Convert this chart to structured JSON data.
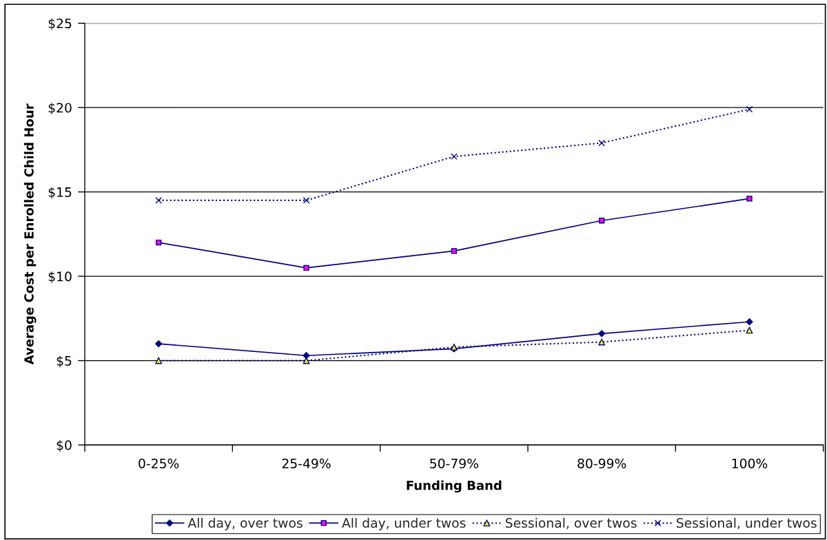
{
  "chart_data": {
    "type": "line",
    "xlabel": "Funding Band",
    "ylabel": "Average Cost per Enrolled Child Hour",
    "categories": [
      "0-25%",
      "25-49%",
      "50-79%",
      "80-99%",
      "100%"
    ],
    "series": [
      {
        "name": "All day, over twos",
        "color": "#000080",
        "colors": [
          "#000080",
          "#000080",
          "#000080",
          "#000080",
          "#000080"
        ],
        "marker": "diamond",
        "line_style": "solid",
        "values": [
          6.0,
          5.3,
          5.7,
          6.6,
          7.3
        ]
      },
      {
        "name": "All day, under twos",
        "color": "#000080",
        "colors": [
          "#ff00ff",
          "#ff00ff",
          "#ff00ff",
          "#ff00ff",
          "#ff00ff"
        ],
        "marker": "square",
        "line_style": "solid",
        "values": [
          12.0,
          10.5,
          11.5,
          13.3,
          14.6
        ]
      },
      {
        "name": "Sessional, over twos",
        "color": "#000080",
        "colors": [
          "#ffff00",
          "#ffff00",
          "#ffff00",
          "#ffff00",
          "#ffff00"
        ],
        "marker": "triangle",
        "line_style": "dotted",
        "values": [
          5.0,
          5.0,
          5.8,
          6.1,
          6.8
        ]
      },
      {
        "name": "Sessional, under twos",
        "color": "#000080",
        "colors": [
          "#000080",
          "#000080",
          "#000080",
          "#000080",
          "#000080"
        ],
        "marker": "cross",
        "line_style": "dotted",
        "values": [
          14.5,
          14.5,
          17.1,
          17.9,
          19.9
        ]
      }
    ],
    "ylim": [
      0,
      25
    ],
    "yticks": [
      {
        "value": 0,
        "label": "$0"
      },
      {
        "value": 5,
        "label": "$5"
      },
      {
        "value": 10,
        "label": "$10"
      },
      {
        "value": 15,
        "label": "$15"
      },
      {
        "value": 20,
        "label": "$20"
      },
      {
        "value": 25,
        "label": "$25"
      }
    ],
    "grid": "y",
    "legend": "bottom"
  }
}
